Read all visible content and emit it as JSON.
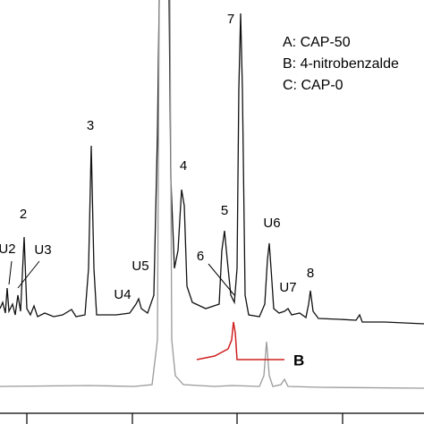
{
  "chart_data": {
    "type": "chromatogram",
    "legend": [
      "A: CAP-50",
      "B: 4-nitrobenzalde",
      "C: CAP-0"
    ],
    "peaks": [
      "7",
      "3",
      "4",
      "2",
      "5",
      "U6",
      "U2",
      "U3",
      "6",
      "8",
      "U5",
      "U7",
      "U4"
    ],
    "trace_label": "B"
  }
}
